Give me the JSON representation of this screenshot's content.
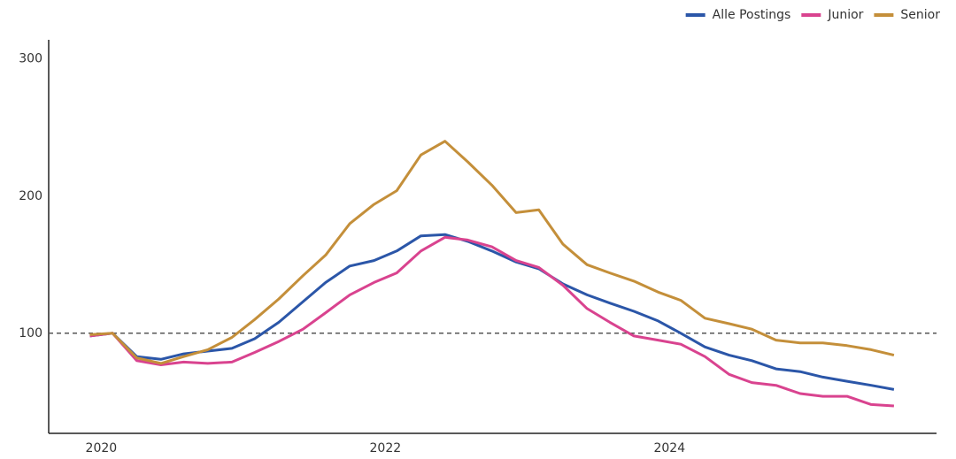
{
  "chart_data": {
    "type": "line",
    "x": [
      2019.92,
      2020.08,
      2020.25,
      2020.42,
      2020.58,
      2020.75,
      2020.92,
      2021.08,
      2021.25,
      2021.42,
      2021.58,
      2021.75,
      2021.92,
      2022.08,
      2022.25,
      2022.42,
      2022.58,
      2022.75,
      2022.92,
      2023.08,
      2023.25,
      2023.42,
      2023.58,
      2023.75,
      2023.92,
      2024.08,
      2024.25,
      2024.42,
      2024.58,
      2024.75,
      2024.92,
      2025.08,
      2025.25,
      2025.42,
      2025.58
    ],
    "series": [
      {
        "name": "Alle Postings",
        "color": "#2b56a8",
        "values": [
          98,
          100,
          83,
          81,
          85,
          87,
          89,
          96,
          108,
          123,
          137,
          149,
          153,
          160,
          171,
          172,
          167,
          160,
          152,
          147,
          136,
          128,
          122,
          116,
          109,
          100,
          90,
          84,
          80,
          74,
          72,
          68,
          65,
          62,
          59
        ]
      },
      {
        "name": "Junior",
        "color": "#d9438f",
        "values": [
          98,
          100,
          80,
          77,
          79,
          78,
          79,
          86,
          94,
          103,
          115,
          128,
          137,
          144,
          160,
          170,
          168,
          163,
          153,
          148,
          135,
          118,
          108,
          98,
          95,
          92,
          83,
          70,
          64,
          62,
          56,
          54,
          54,
          48,
          47
        ]
      },
      {
        "name": "Senior",
        "color": "#c48f3a",
        "values": [
          99,
          100,
          82,
          78,
          83,
          88,
          97,
          110,
          125,
          142,
          157,
          180,
          194,
          204,
          230,
          240,
          225,
          208,
          188,
          190,
          165,
          150,
          144,
          138,
          130,
          124,
          111,
          107,
          103,
          95,
          93,
          93,
          91,
          88,
          84
        ]
      }
    ],
    "xlim": [
      2019.63,
      2025.88
    ],
    "xticks": [
      2020,
      2022,
      2024
    ],
    "ylim": [
      27,
      314
    ],
    "yticks": [
      100,
      200,
      300
    ],
    "reference_line": 100,
    "legend": "top-right"
  }
}
